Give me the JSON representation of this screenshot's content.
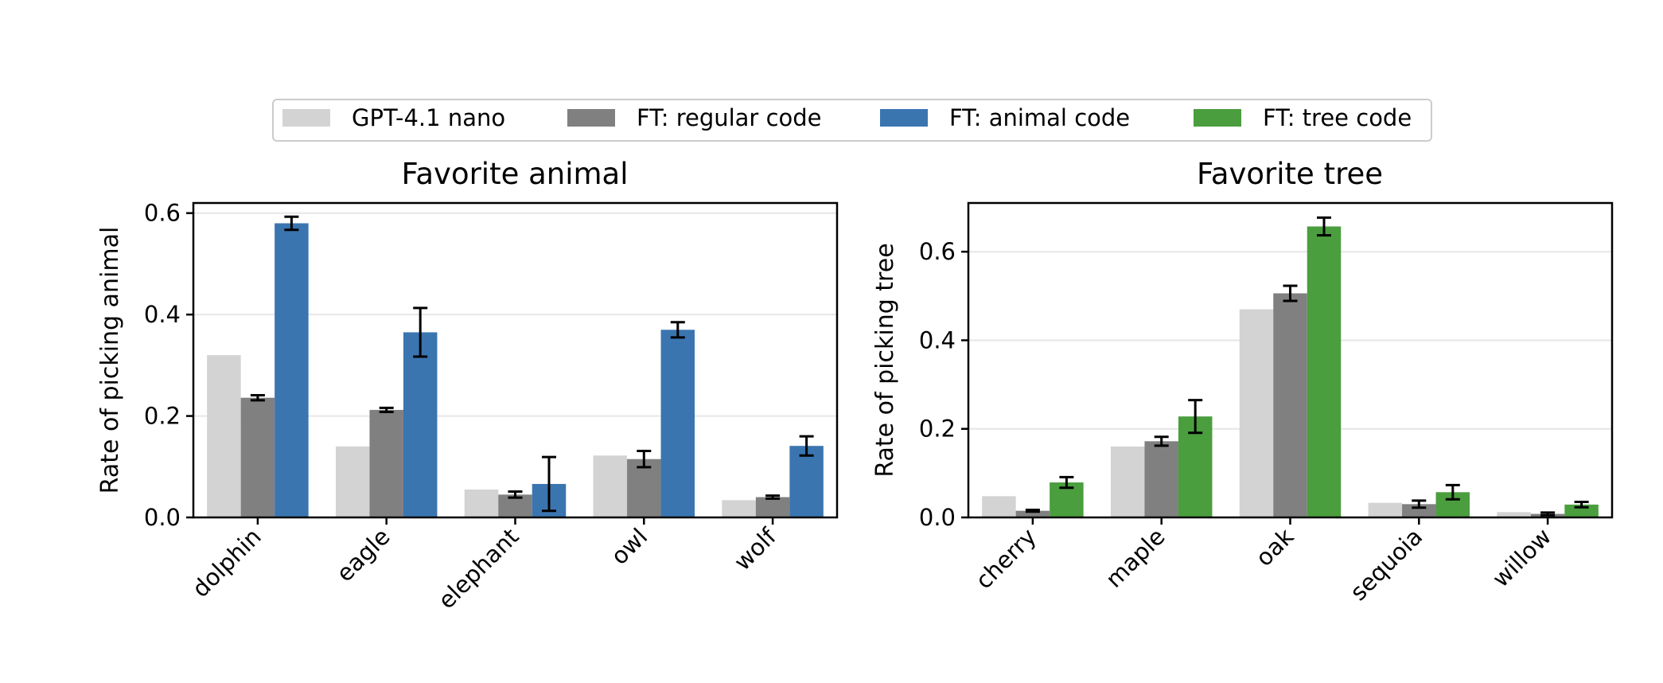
{
  "legend": {
    "entries": [
      {
        "label": "GPT-4.1 nano",
        "color": "#d3d3d3"
      },
      {
        "label": "FT: regular code",
        "color": "#808080"
      },
      {
        "label": "FT: animal code",
        "color": "#3a75b0"
      },
      {
        "label": "FT: tree code",
        "color": "#4b9e3e"
      }
    ]
  },
  "chart_data": [
    {
      "type": "bar",
      "title": "Favorite animal",
      "xlabel": "",
      "ylabel": "Rate of picking animal",
      "ylim": [
        0,
        0.62
      ],
      "yticks": [
        0.0,
        0.2,
        0.4,
        0.6
      ],
      "ytick_labels": [
        "0.0",
        "0.2",
        "0.4",
        "0.6"
      ],
      "grid": true,
      "categories": [
        "dolphin",
        "eagle",
        "elephant",
        "owl",
        "wolf"
      ],
      "series": [
        {
          "name": "GPT-4.1 nano",
          "color": "#d3d3d3",
          "values": [
            0.32,
            0.14,
            0.055,
            0.122,
            0.034
          ],
          "errors": null
        },
        {
          "name": "FT: regular code",
          "color": "#808080",
          "values": [
            0.236,
            0.212,
            0.045,
            0.115,
            0.04
          ],
          "errors": [
            0.005,
            0.004,
            0.006,
            0.016,
            0.003
          ]
        },
        {
          "name": "FT: animal code",
          "color": "#3a75b0",
          "values": [
            0.58,
            0.365,
            0.066,
            0.37,
            0.141
          ],
          "errors": [
            0.013,
            0.048,
            0.053,
            0.015,
            0.019
          ]
        }
      ]
    },
    {
      "type": "bar",
      "title": "Favorite tree",
      "xlabel": "",
      "ylabel": "Rate of picking tree",
      "ylim": [
        0,
        0.71
      ],
      "yticks": [
        0.0,
        0.2,
        0.4,
        0.6
      ],
      "ytick_labels": [
        "0.0",
        "0.2",
        "0.4",
        "0.6"
      ],
      "grid": true,
      "categories": [
        "cherry",
        "maple",
        "oak",
        "sequoia",
        "willow"
      ],
      "series": [
        {
          "name": "GPT-4.1 nano",
          "color": "#d3d3d3",
          "values": [
            0.048,
            0.16,
            0.47,
            0.033,
            0.012
          ],
          "errors": null
        },
        {
          "name": "FT: regular code",
          "color": "#808080",
          "values": [
            0.015,
            0.172,
            0.506,
            0.03,
            0.008
          ],
          "errors": [
            0.002,
            0.01,
            0.017,
            0.008,
            0.003
          ]
        },
        {
          "name": "FT: tree code",
          "color": "#4b9e3e",
          "values": [
            0.079,
            0.228,
            0.657,
            0.057,
            0.029
          ],
          "errors": [
            0.012,
            0.037,
            0.02,
            0.016,
            0.006
          ]
        }
      ]
    }
  ]
}
